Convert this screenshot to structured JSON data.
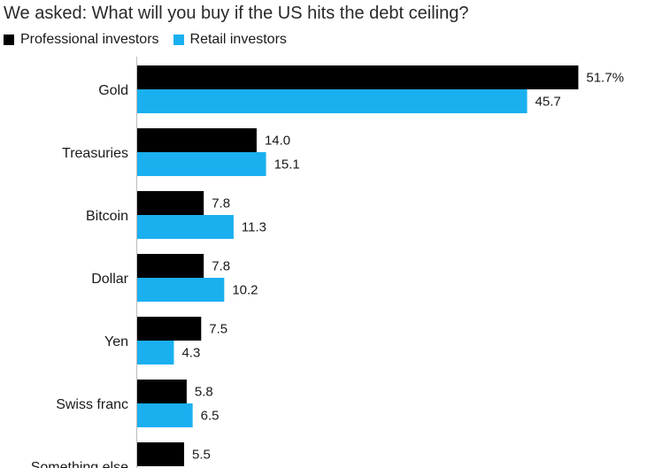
{
  "chart_data": {
    "type": "bar",
    "orientation": "horizontal",
    "title": "We asked: What will you buy if the US hits the debt ceiling?",
    "categories": [
      "Gold",
      "Treasuries",
      "Bitcoin",
      "Dollar",
      "Yen",
      "Swiss franc",
      "Something else"
    ],
    "series": [
      {
        "name": "Professional investors",
        "color": "#000000",
        "values": [
          51.7,
          14.0,
          7.8,
          7.8,
          7.5,
          5.8,
          5.5
        ],
        "labels": [
          "51.7%",
          "14.0",
          "7.8",
          "7.8",
          "7.5",
          "5.8",
          "5.5"
        ]
      },
      {
        "name": "Retail investors",
        "color": "#1ab0f0",
        "values": [
          45.7,
          15.1,
          11.3,
          10.2,
          4.3,
          6.5,
          null
        ],
        "labels": [
          "45.7",
          "15.1",
          "11.3",
          "10.2",
          "4.3",
          "6.5",
          ""
        ]
      }
    ],
    "legend_position": "top-left",
    "grid": false
  }
}
